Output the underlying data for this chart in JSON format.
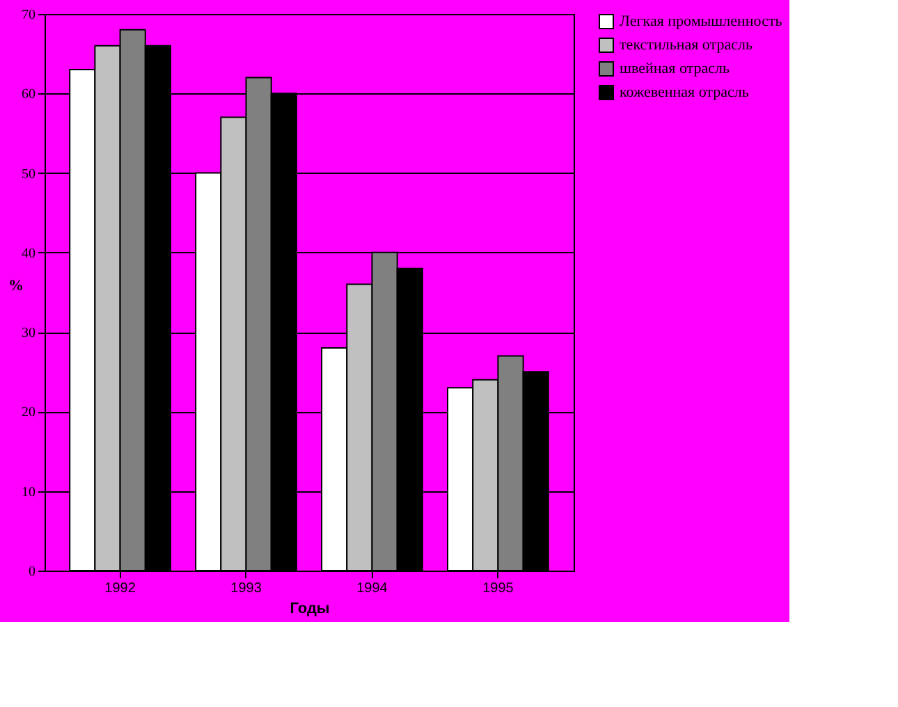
{
  "chart_data": {
    "type": "bar",
    "xlabel": "Годы",
    "ylabel": "%",
    "categories": [
      "1992",
      "1993",
      "1994",
      "1995"
    ],
    "series": [
      {
        "name": "Легкая промышленность",
        "color": "#ffffff",
        "values": [
          63,
          50,
          28,
          23
        ]
      },
      {
        "name": "текстильная отрасль",
        "color": "#c0c0c0",
        "values": [
          66,
          57,
          36,
          24
        ]
      },
      {
        "name": "швейная отрасль",
        "color": "#808080",
        "values": [
          68,
          62,
          40,
          27
        ]
      },
      {
        "name": "кожевенная отрасль",
        "color": "#000000",
        "values": [
          66,
          60,
          38,
          25
        ]
      }
    ],
    "ylim": [
      0,
      70
    ],
    "yticks": [
      0,
      10,
      20,
      30,
      40,
      50,
      60,
      70
    ],
    "grid": "y",
    "legend": "right"
  }
}
